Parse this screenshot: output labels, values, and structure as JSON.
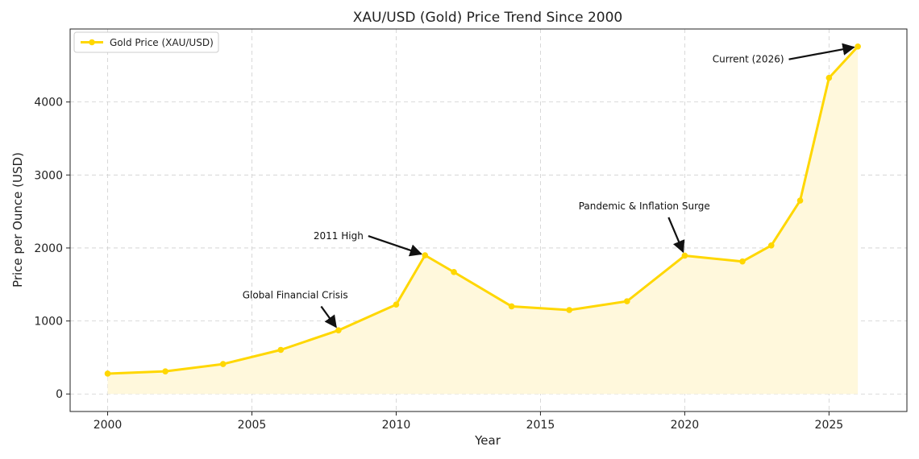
{
  "chart_data": {
    "type": "line",
    "title": "XAU/USD (Gold) Price Trend Since 2000",
    "xlabel": "Year",
    "ylabel": "Price per Ounce (USD)",
    "xlim": [
      1998.7,
      2027.7
    ],
    "ylim": [
      -240,
      5000
    ],
    "x_ticks": [
      2000,
      2005,
      2010,
      2015,
      2020,
      2025
    ],
    "y_ticks": [
      0,
      1000,
      2000,
      3000,
      4000
    ],
    "grid": true,
    "legend_position": "top-left",
    "series": [
      {
        "name": "Gold Price (XAU/USD)",
        "color": "#FFD700",
        "fill_color": "#FFF8DC",
        "x": [
          2000,
          2002,
          2004,
          2006,
          2008,
          2010,
          2011,
          2012,
          2014,
          2016,
          2018,
          2020,
          2022,
          2023,
          2024,
          2025,
          2026
        ],
        "y": [
          279,
          310,
          410,
          604,
          872,
          1225,
          1900,
          1670,
          1200,
          1150,
          1270,
          1895,
          1815,
          2035,
          2650,
          4330,
          4760
        ]
      }
    ],
    "annotations": [
      {
        "text": "Global Financial Crisis",
        "point": [
          2008,
          872
        ],
        "text_pos": [
          2006.5,
          1310
        ],
        "align": "middle"
      },
      {
        "text": "2011 High",
        "point": [
          2011,
          1900
        ],
        "text_pos": [
          2008,
          2120
        ],
        "align": "middle"
      },
      {
        "text": "Pandemic & Inflation Surge",
        "point": [
          2020,
          1895
        ],
        "text_pos": [
          2018.6,
          2530
        ],
        "align": "middle"
      },
      {
        "text": "Current (2026)",
        "point": [
          2026,
          4760
        ],
        "text_pos": [
          2022.2,
          4540
        ],
        "align": "middle"
      }
    ]
  }
}
